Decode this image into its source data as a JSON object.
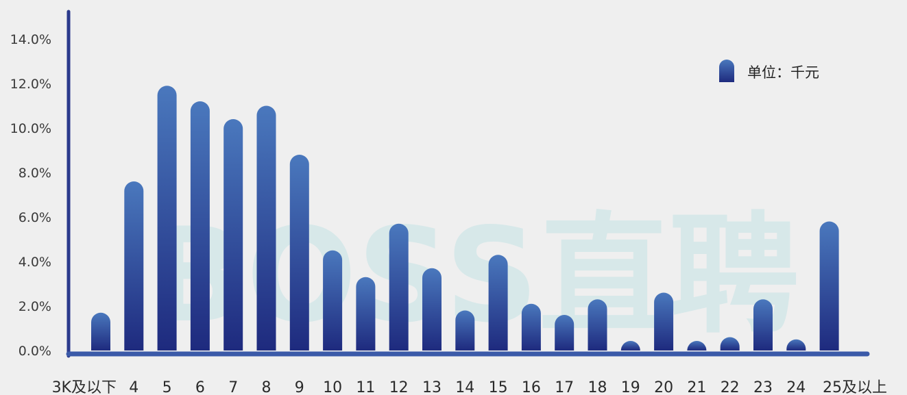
{
  "chart_data": {
    "type": "bar",
    "categories": [
      "3K及以下",
      "4",
      "5",
      "6",
      "7",
      "8",
      "9",
      "10",
      "11",
      "12",
      "13",
      "14",
      "15",
      "16",
      "17",
      "18",
      "19",
      "20",
      "21",
      "22",
      "23",
      "24",
      "25及以上"
    ],
    "values": [
      1.7,
      7.6,
      11.9,
      11.2,
      10.4,
      11.0,
      8.8,
      4.5,
      3.3,
      5.7,
      3.7,
      1.8,
      4.3,
      2.1,
      1.6,
      2.3,
      0.2,
      2.6,
      0.1,
      0.6,
      2.3,
      0.5,
      5.8
    ],
    "ylim": [
      0,
      15
    ],
    "yticks": [
      "0.0%",
      "2.0%",
      "4.0%",
      "6.0%",
      "8.0%",
      "10.0%",
      "12.0%",
      "14.0%"
    ],
    "ytick_values": [
      0,
      2,
      4,
      6,
      8,
      10,
      12,
      14
    ],
    "legend": {
      "label": "单位：千元",
      "placement": "top-right"
    },
    "grid": false,
    "colors": {
      "bar_top": "#4a78bd",
      "bar_bottom": "#1e2a7e",
      "axis": "#2b3a8c",
      "baseline": "#3b5aa8"
    }
  },
  "watermark": {
    "text": "BOSS直聘",
    "color": "#cfe6e8"
  }
}
